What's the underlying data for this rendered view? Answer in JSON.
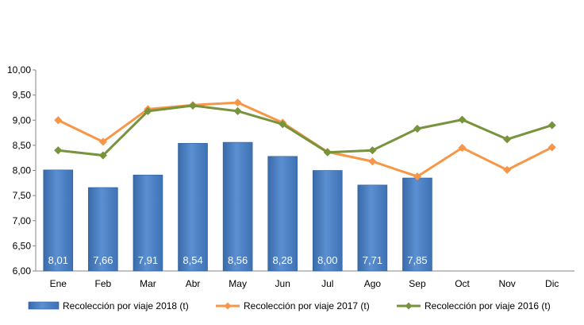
{
  "chart_data": {
    "type": "bar",
    "categories": [
      "Ene",
      "Feb",
      "Mar",
      "Abr",
      "May",
      "Jun",
      "Jul",
      "Ago",
      "Sep",
      "Oct",
      "Nov",
      "Dic"
    ],
    "ylim": [
      6.0,
      10.0
    ],
    "yticks": [
      "6,00",
      "6,50",
      "7,00",
      "7,50",
      "8,00",
      "8,50",
      "9,00",
      "9,50",
      "10,00"
    ],
    "ytick_values": [
      6.0,
      6.5,
      7.0,
      7.5,
      8.0,
      8.5,
      9.0,
      9.5,
      10.0
    ],
    "grid": false,
    "legend_position": "bottom",
    "series": [
      {
        "name": "Recolección por viaje 2018 (t)",
        "kind": "bar",
        "color": "#4a7ebb",
        "values": [
          8.01,
          7.66,
          7.91,
          8.54,
          8.56,
          8.28,
          8.0,
          7.71,
          7.85,
          null,
          null,
          null
        ],
        "labels": [
          "8,01",
          "7,66",
          "7,91",
          "8,54",
          "8,56",
          "8,28",
          "8,00",
          "7,71",
          "7,85",
          null,
          null,
          null
        ]
      },
      {
        "name": "Recolección por viaje 2017 (t)",
        "kind": "line",
        "color": "#f79646",
        "values": [
          9.0,
          8.57,
          9.22,
          9.3,
          9.35,
          8.95,
          8.37,
          8.18,
          7.88,
          8.45,
          8.01,
          8.46
        ]
      },
      {
        "name": "Recolección por viaje 2016 (t)",
        "kind": "line",
        "color": "#77933c",
        "values": [
          8.4,
          8.3,
          9.18,
          9.29,
          9.18,
          8.92,
          8.36,
          8.4,
          8.83,
          9.01,
          8.62,
          8.9
        ]
      }
    ]
  }
}
